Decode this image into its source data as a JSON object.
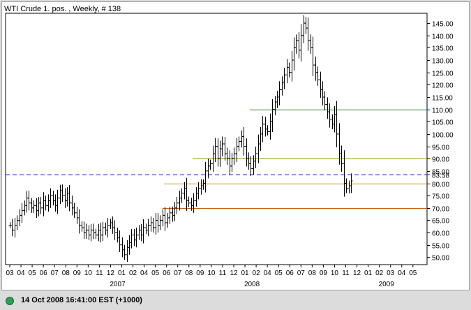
{
  "chart_data": {
    "type": "ohlc",
    "title": "WTI Crude 1. pos. , Weekly, # 138",
    "yticks": [
      50,
      55,
      60,
      65,
      70,
      75,
      80,
      85,
      90,
      95,
      100,
      105,
      110,
      115,
      120,
      125,
      130,
      135,
      140,
      145
    ],
    "ylim": [
      47,
      149
    ],
    "x_month_labels": [
      "03",
      "04",
      "05",
      "06",
      "07",
      "08",
      "09",
      "10",
      "11",
      "12",
      "01",
      "02",
      "04",
      "05",
      "06",
      "07",
      "08",
      "09",
      "10",
      "11",
      "12",
      "01",
      "02",
      "04",
      "05",
      "06",
      "07",
      "08",
      "09",
      "10",
      "11",
      "12",
      "01",
      "02",
      "03",
      "04",
      "05"
    ],
    "x_year_labels": [
      {
        "label": "2007",
        "index": 10
      },
      {
        "label": "2008",
        "index": 22
      },
      {
        "label": "2009",
        "index": 34
      }
    ],
    "weekly_close": [
      63,
      61,
      63,
      65,
      67,
      69,
      71,
      74,
      72,
      70,
      71,
      69,
      72,
      70,
      73,
      71,
      73,
      75,
      73,
      71,
      74,
      77,
      75,
      73,
      76,
      72,
      70,
      68,
      66,
      63,
      62,
      60,
      61,
      59,
      61,
      60,
      59,
      61,
      59,
      62,
      61,
      63,
      64,
      62,
      60,
      58,
      55,
      53,
      51,
      54,
      56,
      59,
      57,
      59,
      61,
      59,
      62,
      61,
      63,
      64,
      62,
      65,
      63,
      65,
      67,
      64,
      66,
      68,
      67,
      70,
      72,
      74,
      76,
      78,
      73,
      72,
      71,
      73,
      76,
      78,
      79,
      80,
      85,
      87,
      88,
      92,
      95,
      90,
      94,
      96,
      92,
      90,
      87,
      90,
      92,
      95,
      97,
      99,
      95,
      90,
      88,
      86,
      89,
      92,
      96,
      100,
      104,
      102,
      101,
      105,
      110,
      113,
      115,
      118,
      121,
      124,
      127,
      125,
      130,
      135,
      138,
      134,
      140,
      145,
      143,
      138,
      135,
      128,
      125,
      122,
      118,
      115,
      112,
      109,
      106,
      104,
      108,
      100,
      92,
      88,
      80,
      78,
      79,
      81
    ],
    "horizontal_lines": [
      {
        "value": 110,
        "color": "#1f7a1f"
      },
      {
        "value": 90,
        "color": "#9a9a10"
      },
      {
        "value": 80,
        "color": "#b8900a"
      },
      {
        "value": 70,
        "color": "#c06010"
      }
    ],
    "last_price": {
      "value": 83.58,
      "label": "83.58",
      "color": "#0000cc"
    }
  },
  "status": {
    "text": "14 Oct 2008 16:41:00  EST (+1000)"
  }
}
